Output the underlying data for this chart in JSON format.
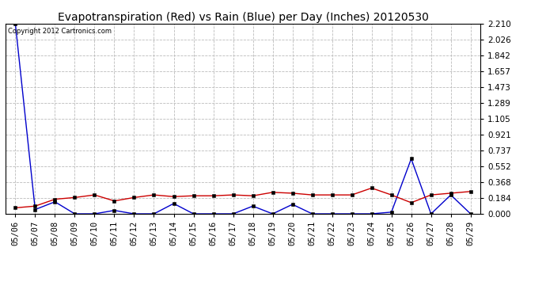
{
  "title": "Evapotranspiration (Red) vs Rain (Blue) per Day (Inches) 20120530",
  "copyright_text": "Copyright 2012 Cartronics.com",
  "dates": [
    "05/06",
    "05/07",
    "05/08",
    "05/09",
    "05/10",
    "05/11",
    "05/12",
    "05/13",
    "05/14",
    "05/15",
    "05/16",
    "05/17",
    "05/18",
    "05/19",
    "05/20",
    "05/21",
    "05/22",
    "05/23",
    "05/24",
    "05/25",
    "05/26",
    "05/27",
    "05/28",
    "05/29"
  ],
  "red_et": [
    0.07,
    0.09,
    0.17,
    0.19,
    0.22,
    0.15,
    0.19,
    0.22,
    0.2,
    0.21,
    0.21,
    0.22,
    0.21,
    0.25,
    0.24,
    0.22,
    0.22,
    0.22,
    0.3,
    0.22,
    0.13,
    0.22,
    0.24,
    0.26
  ],
  "blue_rain": [
    2.21,
    0.05,
    0.14,
    0.0,
    0.0,
    0.04,
    0.0,
    0.0,
    0.12,
    0.0,
    0.0,
    0.0,
    0.09,
    0.0,
    0.11,
    0.0,
    0.0,
    0.0,
    0.0,
    0.02,
    0.64,
    0.0,
    0.22,
    0.0
  ],
  "y_ticks": [
    0.0,
    0.184,
    0.368,
    0.552,
    0.737,
    0.921,
    1.105,
    1.289,
    1.473,
    1.657,
    1.842,
    2.026,
    2.21
  ],
  "ymin": 0.0,
  "ymax": 2.21,
  "red_color": "#cc0000",
  "blue_color": "#0000cc",
  "bg_color": "#ffffff",
  "grid_color": "#bbbbbb",
  "title_fontsize": 10,
  "tick_fontsize": 7.5,
  "copyright_fontsize": 6
}
